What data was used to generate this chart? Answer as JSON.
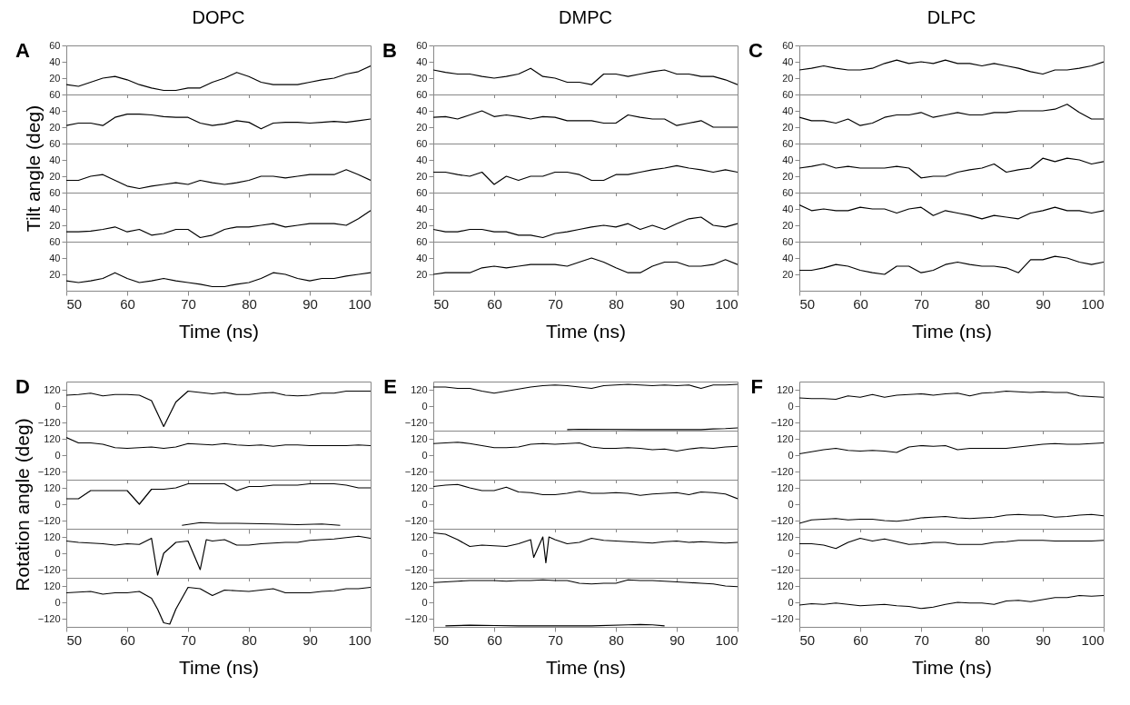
{
  "chart_data": [
    {
      "type": "line",
      "title": "DOPC",
      "annotations": [
        "A"
      ],
      "tick_labels": "y",
      "x": [
        50,
        52,
        54,
        56,
        58,
        60,
        62,
        64,
        66,
        68,
        70,
        72,
        74,
        76,
        78,
        80,
        82,
        84,
        86,
        88,
        90,
        92,
        94,
        96,
        98,
        100
      ],
      "xlim": [
        50,
        100
      ],
      "xticks": [
        50,
        60,
        70,
        80,
        90,
        100
      ],
      "ylim": [
        0,
        60
      ],
      "yticks": [
        20,
        40,
        60
      ],
      "series": [
        {
          "color": "#000000",
          "values": [
            12,
            10,
            15,
            20,
            22,
            18,
            12,
            8,
            5,
            5,
            8,
            8,
            15,
            20,
            27,
            22,
            15,
            12,
            12,
            12,
            15,
            18,
            20,
            25,
            28,
            35
          ]
        }
      ]
    },
    {
      "type": "line",
      "tick_labels": "y",
      "x": [
        50,
        52,
        54,
        56,
        58,
        60,
        62,
        64,
        66,
        68,
        70,
        72,
        74,
        76,
        78,
        80,
        82,
        84,
        86,
        88,
        90,
        92,
        94,
        96,
        98,
        100
      ],
      "xlim": [
        50,
        100
      ],
      "xticks": [
        50,
        60,
        70,
        80,
        90,
        100
      ],
      "ylim": [
        0,
        60
      ],
      "yticks": [
        20,
        40,
        60
      ],
      "series": [
        {
          "color": "#000000",
          "values": [
            22,
            25,
            25,
            22,
            32,
            36,
            36,
            35,
            33,
            32,
            32,
            25,
            22,
            24,
            28,
            26,
            18,
            25,
            26,
            26,
            25,
            26,
            27,
            26,
            28,
            30
          ]
        }
      ]
    },
    {
      "type": "line",
      "ylabel": "Tilt angle (deg)",
      "tick_labels": "y",
      "x": [
        50,
        52,
        54,
        56,
        58,
        60,
        62,
        64,
        66,
        68,
        70,
        72,
        74,
        76,
        78,
        80,
        82,
        84,
        86,
        88,
        90,
        92,
        94,
        96,
        98,
        100
      ],
      "xlim": [
        50,
        100
      ],
      "xticks": [
        50,
        60,
        70,
        80,
        90,
        100
      ],
      "ylim": [
        0,
        60
      ],
      "yticks": [
        20,
        40,
        60
      ],
      "series": [
        {
          "color": "#000000",
          "values": [
            15,
            15,
            20,
            22,
            15,
            8,
            5,
            8,
            10,
            12,
            10,
            15,
            12,
            10,
            12,
            15,
            20,
            20,
            18,
            20,
            22,
            22,
            22,
            28,
            22,
            15
          ]
        }
      ]
    },
    {
      "type": "line",
      "tick_labels": "y",
      "x": [
        50,
        52,
        54,
        56,
        58,
        60,
        62,
        64,
        66,
        68,
        70,
        72,
        74,
        76,
        78,
        80,
        82,
        84,
        86,
        88,
        90,
        92,
        94,
        96,
        98,
        100
      ],
      "xlim": [
        50,
        100
      ],
      "xticks": [
        50,
        60,
        70,
        80,
        90,
        100
      ],
      "ylim": [
        0,
        60
      ],
      "yticks": [
        20,
        40,
        60
      ],
      "series": [
        {
          "color": "#000000",
          "values": [
            12,
            12,
            13,
            15,
            18,
            12,
            15,
            8,
            10,
            15,
            15,
            5,
            8,
            15,
            18,
            18,
            20,
            22,
            18,
            20,
            22,
            22,
            22,
            20,
            28,
            38
          ]
        }
      ]
    },
    {
      "type": "line",
      "xlabel": "Time (ns)",
      "x": [
        50,
        52,
        54,
        56,
        58,
        60,
        62,
        64,
        66,
        68,
        70,
        72,
        74,
        76,
        78,
        80,
        82,
        84,
        86,
        88,
        90,
        92,
        94,
        96,
        98,
        100
      ],
      "xlim": [
        50,
        100
      ],
      "xticks": [
        50,
        60,
        70,
        80,
        90,
        100
      ],
      "ylim": [
        0,
        60
      ],
      "yticks": [
        20,
        40,
        60
      ],
      "series": [
        {
          "color": "#000000",
          "values": [
            12,
            10,
            12,
            15,
            22,
            15,
            10,
            12,
            15,
            12,
            10,
            8,
            5,
            5,
            8,
            10,
            15,
            22,
            20,
            15,
            12,
            15,
            15,
            18,
            20,
            22
          ]
        }
      ]
    },
    {
      "type": "line",
      "title": "DMPC",
      "annotations": [
        "B"
      ],
      "tick_labels": "y",
      "x": [
        50,
        52,
        54,
        56,
        58,
        60,
        62,
        64,
        66,
        68,
        70,
        72,
        74,
        76,
        78,
        80,
        82,
        84,
        86,
        88,
        90,
        92,
        94,
        96,
        98,
        100
      ],
      "xlim": [
        50,
        100
      ],
      "xticks": [
        50,
        60,
        70,
        80,
        90,
        100
      ],
      "ylim": [
        0,
        60
      ],
      "yticks": [
        20,
        40,
        60
      ],
      "series": [
        {
          "color": "#000000",
          "values": [
            30,
            27,
            25,
            25,
            22,
            20,
            22,
            25,
            32,
            22,
            20,
            15,
            15,
            12,
            25,
            25,
            22,
            25,
            28,
            30,
            25,
            25,
            22,
            22,
            18,
            12
          ]
        }
      ]
    },
    {
      "type": "line",
      "tick_labels": "y",
      "x": [
        50,
        52,
        54,
        56,
        58,
        60,
        62,
        64,
        66,
        68,
        70,
        72,
        74,
        76,
        78,
        80,
        82,
        84,
        86,
        88,
        90,
        92,
        94,
        96,
        98,
        100
      ],
      "xlim": [
        50,
        100
      ],
      "xticks": [
        50,
        60,
        70,
        80,
        90,
        100
      ],
      "ylim": [
        0,
        60
      ],
      "yticks": [
        20,
        40,
        60
      ],
      "series": [
        {
          "color": "#000000",
          "values": [
            32,
            33,
            30,
            35,
            40,
            33,
            35,
            33,
            30,
            33,
            32,
            28,
            28,
            28,
            25,
            25,
            35,
            32,
            30,
            30,
            22,
            25,
            28,
            20,
            20,
            20
          ]
        }
      ]
    },
    {
      "type": "line",
      "tick_labels": "y",
      "x": [
        50,
        52,
        54,
        56,
        58,
        60,
        62,
        64,
        66,
        68,
        70,
        72,
        74,
        76,
        78,
        80,
        82,
        84,
        86,
        88,
        90,
        92,
        94,
        96,
        98,
        100
      ],
      "xlim": [
        50,
        100
      ],
      "xticks": [
        50,
        60,
        70,
        80,
        90,
        100
      ],
      "ylim": [
        0,
        60
      ],
      "yticks": [
        20,
        40,
        60
      ],
      "series": [
        {
          "color": "#000000",
          "values": [
            25,
            25,
            22,
            20,
            25,
            10,
            20,
            15,
            20,
            20,
            25,
            25,
            22,
            15,
            15,
            22,
            22,
            25,
            28,
            30,
            33,
            30,
            28,
            25,
            28,
            25
          ]
        }
      ]
    },
    {
      "type": "line",
      "tick_labels": "y",
      "x": [
        50,
        52,
        54,
        56,
        58,
        60,
        62,
        64,
        66,
        68,
        70,
        72,
        74,
        76,
        78,
        80,
        82,
        84,
        86,
        88,
        90,
        92,
        94,
        96,
        98,
        100
      ],
      "xlim": [
        50,
        100
      ],
      "xticks": [
        50,
        60,
        70,
        80,
        90,
        100
      ],
      "ylim": [
        0,
        60
      ],
      "yticks": [
        20,
        40,
        60
      ],
      "series": [
        {
          "color": "#000000",
          "values": [
            15,
            12,
            12,
            15,
            15,
            12,
            12,
            8,
            8,
            5,
            10,
            12,
            15,
            18,
            20,
            18,
            22,
            15,
            20,
            15,
            22,
            28,
            30,
            20,
            18,
            22
          ]
        }
      ]
    },
    {
      "type": "line",
      "xlabel": "Time (ns)",
      "x": [
        50,
        52,
        54,
        56,
        58,
        60,
        62,
        64,
        66,
        68,
        70,
        72,
        74,
        76,
        78,
        80,
        82,
        84,
        86,
        88,
        90,
        92,
        94,
        96,
        98,
        100
      ],
      "xlim": [
        50,
        100
      ],
      "xticks": [
        50,
        60,
        70,
        80,
        90,
        100
      ],
      "ylim": [
        0,
        60
      ],
      "yticks": [
        20,
        40,
        60
      ],
      "series": [
        {
          "color": "#000000",
          "values": [
            20,
            22,
            22,
            22,
            28,
            30,
            28,
            30,
            32,
            32,
            32,
            30,
            35,
            40,
            35,
            28,
            22,
            22,
            30,
            35,
            35,
            30,
            30,
            32,
            38,
            32
          ]
        }
      ]
    },
    {
      "type": "line",
      "title": "DLPC",
      "annotations": [
        "C"
      ],
      "tick_labels": "y",
      "x": [
        50,
        52,
        54,
        56,
        58,
        60,
        62,
        64,
        66,
        68,
        70,
        72,
        74,
        76,
        78,
        80,
        82,
        84,
        86,
        88,
        90,
        92,
        94,
        96,
        98,
        100
      ],
      "xlim": [
        50,
        100
      ],
      "xticks": [
        50,
        60,
        70,
        80,
        90,
        100
      ],
      "ylim": [
        0,
        60
      ],
      "yticks": [
        20,
        40,
        60
      ],
      "series": [
        {
          "color": "#000000",
          "values": [
            30,
            32,
            35,
            32,
            30,
            30,
            32,
            38,
            42,
            38,
            40,
            38,
            42,
            38,
            38,
            35,
            38,
            35,
            32,
            28,
            25,
            30,
            30,
            32,
            35,
            40
          ]
        }
      ]
    },
    {
      "type": "line",
      "tick_labels": "y",
      "x": [
        50,
        52,
        54,
        56,
        58,
        60,
        62,
        64,
        66,
        68,
        70,
        72,
        74,
        76,
        78,
        80,
        82,
        84,
        86,
        88,
        90,
        92,
        94,
        96,
        98,
        100
      ],
      "xlim": [
        50,
        100
      ],
      "xticks": [
        50,
        60,
        70,
        80,
        90,
        100
      ],
      "ylim": [
        0,
        60
      ],
      "yticks": [
        20,
        40,
        60
      ],
      "series": [
        {
          "color": "#000000",
          "values": [
            32,
            28,
            28,
            25,
            30,
            22,
            25,
            32,
            35,
            35,
            38,
            32,
            35,
            38,
            35,
            35,
            38,
            38,
            40,
            40,
            40,
            42,
            48,
            38,
            30,
            30
          ]
        }
      ]
    },
    {
      "type": "line",
      "tick_labels": "y",
      "x": [
        50,
        52,
        54,
        56,
        58,
        60,
        62,
        64,
        66,
        68,
        70,
        72,
        74,
        76,
        78,
        80,
        82,
        84,
        86,
        88,
        90,
        92,
        94,
        96,
        98,
        100
      ],
      "xlim": [
        50,
        100
      ],
      "xticks": [
        50,
        60,
        70,
        80,
        90,
        100
      ],
      "ylim": [
        0,
        60
      ],
      "yticks": [
        20,
        40,
        60
      ],
      "series": [
        {
          "color": "#000000",
          "values": [
            30,
            32,
            35,
            30,
            32,
            30,
            30,
            30,
            32,
            30,
            18,
            20,
            20,
            25,
            28,
            30,
            35,
            25,
            28,
            30,
            42,
            38,
            42,
            40,
            35,
            38
          ]
        }
      ]
    },
    {
      "type": "line",
      "tick_labels": "y",
      "x": [
        50,
        52,
        54,
        56,
        58,
        60,
        62,
        64,
        66,
        68,
        70,
        72,
        74,
        76,
        78,
        80,
        82,
        84,
        86,
        88,
        90,
        92,
        94,
        96,
        98,
        100
      ],
      "xlim": [
        50,
        100
      ],
      "xticks": [
        50,
        60,
        70,
        80,
        90,
        100
      ],
      "ylim": [
        0,
        60
      ],
      "yticks": [
        20,
        40,
        60
      ],
      "series": [
        {
          "color": "#000000",
          "values": [
            45,
            38,
            40,
            38,
            38,
            42,
            40,
            40,
            35,
            40,
            42,
            32,
            38,
            35,
            32,
            28,
            32,
            30,
            28,
            35,
            38,
            42,
            38,
            38,
            35,
            38
          ]
        }
      ]
    },
    {
      "type": "line",
      "xlabel": "Time (ns)",
      "x": [
        50,
        52,
        54,
        56,
        58,
        60,
        62,
        64,
        66,
        68,
        70,
        72,
        74,
        76,
        78,
        80,
        82,
        84,
        86,
        88,
        90,
        92,
        94,
        96,
        98,
        100
      ],
      "xlim": [
        50,
        100
      ],
      "xticks": [
        50,
        60,
        70,
        80,
        90,
        100
      ],
      "ylim": [
        0,
        60
      ],
      "yticks": [
        20,
        40,
        60
      ],
      "series": [
        {
          "color": "#000000",
          "values": [
            25,
            25,
            28,
            32,
            30,
            25,
            22,
            20,
            30,
            30,
            22,
            25,
            32,
            35,
            32,
            30,
            30,
            28,
            22,
            38,
            38,
            42,
            40,
            35,
            32,
            35
          ]
        }
      ]
    },
    {
      "type": "line",
      "annotations": [
        "D"
      ],
      "tick_labels": "y",
      "x": [
        50,
        52,
        54,
        56,
        58,
        60,
        62,
        64,
        66,
        68,
        70,
        72,
        74,
        76,
        78,
        80,
        82,
        84,
        86,
        88,
        90,
        92,
        94,
        96,
        98,
        100
      ],
      "xlim": [
        50,
        100
      ],
      "xticks": [
        50,
        60,
        70,
        80,
        90,
        100
      ],
      "ylim": [
        -180,
        180
      ],
      "yticks": [
        -120,
        0,
        120
      ],
      "series": [
        {
          "color": "#000000",
          "values": [
            80,
            85,
            95,
            75,
            85,
            85,
            80,
            40,
            -150,
            30,
            110,
            100,
            90,
            100,
            85,
            85,
            95,
            100,
            80,
            75,
            80,
            95,
            95,
            110,
            110,
            110
          ]
        }
      ]
    },
    {
      "type": "line",
      "tick_labels": "y",
      "x": [
        50,
        52,
        54,
        56,
        58,
        60,
        62,
        64,
        66,
        68,
        70,
        72,
        74,
        76,
        78,
        80,
        82,
        84,
        86,
        88,
        90,
        92,
        94,
        96,
        98,
        100
      ],
      "xlim": [
        50,
        100
      ],
      "xticks": [
        50,
        60,
        70,
        80,
        90,
        100
      ],
      "ylim": [
        -180,
        180
      ],
      "yticks": [
        -120,
        0,
        120
      ],
      "series": [
        {
          "color": "#000000",
          "values": [
            130,
            90,
            90,
            80,
            55,
            50,
            55,
            60,
            50,
            60,
            85,
            80,
            75,
            85,
            75,
            70,
            75,
            65,
            75,
            75,
            70,
            70,
            70,
            70,
            75,
            70
          ]
        }
      ]
    },
    {
      "type": "line",
      "ylabel": "Rotation angle (deg)",
      "tick_labels": "y",
      "x": [
        50,
        52,
        54,
        56,
        58,
        60,
        62,
        64,
        66,
        68,
        70,
        72,
        74,
        76,
        78,
        80,
        82,
        84,
        86,
        88,
        90,
        92,
        94,
        96,
        98,
        100
      ],
      "xlim": [
        50,
        100
      ],
      "xticks": [
        50,
        60,
        70,
        80,
        90,
        100
      ],
      "ylim": [
        -180,
        180
      ],
      "yticks": [
        -120,
        0,
        120
      ],
      "series": [
        {
          "color": "#000000",
          "values": [
            40,
            40,
            100,
            100,
            100,
            100,
            0,
            110,
            110,
            120,
            150,
            150,
            150,
            150,
            100,
            130,
            130,
            140,
            140,
            140,
            150,
            150,
            150,
            140,
            120,
            120
          ]
        },
        {
          "color": "#000000",
          "x": [
            69,
            72,
            75,
            78,
            84,
            88,
            92,
            95
          ],
          "values": [
            -155,
            -135,
            -140,
            -140,
            -145,
            -150,
            -145,
            -155
          ]
        }
      ]
    },
    {
      "type": "line",
      "tick_labels": "y",
      "x": [
        50,
        52,
        54,
        56,
        58,
        60,
        62,
        64,
        65,
        66,
        68,
        70,
        72,
        73,
        74,
        76,
        78,
        80,
        82,
        84,
        86,
        88,
        90,
        92,
        94,
        96,
        98,
        100
      ],
      "xlim": [
        50,
        100
      ],
      "xticks": [
        50,
        60,
        70,
        80,
        90,
        100
      ],
      "ylim": [
        -180,
        180
      ],
      "yticks": [
        -120,
        0,
        120
      ],
      "series": [
        {
          "color": "#000000",
          "values": [
            90,
            80,
            75,
            70,
            60,
            70,
            65,
            110,
            -160,
            0,
            80,
            90,
            -120,
            100,
            90,
            100,
            60,
            60,
            70,
            75,
            80,
            80,
            95,
            100,
            105,
            115,
            125,
            110
          ]
        }
      ]
    },
    {
      "type": "line",
      "xlabel": "Time (ns)",
      "x": [
        50,
        52,
        54,
        56,
        58,
        60,
        62,
        64,
        65,
        66,
        67,
        68,
        70,
        72,
        74,
        76,
        78,
        80,
        82,
        84,
        86,
        88,
        90,
        92,
        94,
        96,
        98,
        100
      ],
      "xlim": [
        50,
        100
      ],
      "xticks": [
        50,
        60,
        70,
        80,
        90,
        100
      ],
      "ylim": [
        -180,
        180
      ],
      "yticks": [
        -120,
        0,
        120
      ],
      "series": [
        {
          "color": "#000000",
          "values": [
            70,
            75,
            80,
            60,
            70,
            70,
            80,
            30,
            -50,
            -150,
            -160,
            -50,
            110,
            100,
            50,
            90,
            85,
            80,
            90,
            100,
            70,
            70,
            70,
            80,
            85,
            100,
            100,
            110
          ]
        }
      ]
    },
    {
      "type": "line",
      "annotations": [
        "E"
      ],
      "tick_labels": "y",
      "x": [
        50,
        52,
        54,
        56,
        58,
        60,
        62,
        64,
        66,
        68,
        70,
        72,
        74,
        76,
        78,
        80,
        82,
        84,
        86,
        88,
        90,
        92,
        94,
        96,
        98,
        100
      ],
      "xlim": [
        50,
        100
      ],
      "xticks": [
        50,
        60,
        70,
        80,
        90,
        100
      ],
      "ylim": [
        -180,
        180
      ],
      "yticks": [
        -120,
        0,
        120
      ],
      "series": [
        {
          "color": "#000000",
          "values": [
            140,
            140,
            130,
            130,
            110,
            95,
            110,
            125,
            140,
            150,
            155,
            150,
            140,
            130,
            150,
            155,
            160,
            155,
            150,
            155,
            150,
            155,
            130,
            155,
            155,
            160
          ]
        },
        {
          "color": "#000000",
          "x": [
            72,
            74,
            84,
            94,
            96,
            98,
            100
          ],
          "values": [
            -172,
            -170,
            -172,
            -172,
            -168,
            -165,
            -160
          ]
        }
      ]
    },
    {
      "type": "line",
      "tick_labels": "y",
      "x": [
        50,
        52,
        54,
        56,
        58,
        60,
        62,
        64,
        66,
        68,
        70,
        72,
        74,
        76,
        78,
        80,
        82,
        84,
        86,
        88,
        90,
        92,
        94,
        96,
        98,
        100
      ],
      "xlim": [
        50,
        100
      ],
      "xticks": [
        50,
        60,
        70,
        80,
        90,
        100
      ],
      "ylim": [
        -180,
        180
      ],
      "yticks": [
        -120,
        0,
        120
      ],
      "series": [
        {
          "color": "#000000",
          "values": [
            85,
            90,
            95,
            85,
            70,
            55,
            55,
            60,
            80,
            85,
            80,
            85,
            90,
            60,
            50,
            50,
            55,
            50,
            40,
            45,
            30,
            45,
            55,
            50,
            60,
            65
          ]
        }
      ]
    },
    {
      "type": "line",
      "tick_labels": "y",
      "x": [
        50,
        52,
        54,
        56,
        58,
        60,
        62,
        64,
        66,
        68,
        70,
        72,
        74,
        76,
        78,
        80,
        82,
        84,
        86,
        88,
        90,
        92,
        94,
        96,
        98,
        100
      ],
      "xlim": [
        50,
        100
      ],
      "xticks": [
        50,
        60,
        70,
        80,
        90,
        100
      ],
      "ylim": [
        -180,
        180
      ],
      "yticks": [
        -120,
        0,
        120
      ],
      "series": [
        {
          "color": "#000000",
          "values": [
            130,
            140,
            145,
            120,
            100,
            100,
            125,
            90,
            85,
            70,
            70,
            80,
            95,
            80,
            80,
            85,
            80,
            65,
            75,
            80,
            85,
            70,
            90,
            85,
            75,
            40
          ]
        }
      ]
    },
    {
      "type": "line",
      "tick_labels": "y",
      "x": [
        50,
        52,
        54,
        56,
        58,
        60,
        62,
        64,
        66,
        66.5,
        68,
        68.5,
        69,
        70,
        72,
        74,
        76,
        78,
        80,
        82,
        84,
        86,
        88,
        90,
        92,
        94,
        96,
        98,
        100
      ],
      "xlim": [
        50,
        100
      ],
      "xticks": [
        50,
        60,
        70,
        80,
        90,
        100
      ],
      "ylim": [
        -180,
        180
      ],
      "yticks": [
        -120,
        0,
        120
      ],
      "series": [
        {
          "color": "#000000",
          "values": [
            150,
            140,
            100,
            50,
            60,
            55,
            50,
            70,
            100,
            -30,
            120,
            -70,
            120,
            100,
            70,
            80,
            110,
            95,
            90,
            85,
            80,
            75,
            85,
            90,
            80,
            85,
            80,
            75,
            80
          ]
        }
      ]
    },
    {
      "type": "line",
      "xlabel": "Time (ns)",
      "x": [
        50,
        52,
        54,
        56,
        58,
        60,
        62,
        64,
        66,
        68,
        70,
        72,
        74,
        76,
        78,
        80,
        82,
        84,
        86,
        88,
        90,
        92,
        94,
        96,
        98,
        100
      ],
      "xlim": [
        50,
        100
      ],
      "xticks": [
        50,
        60,
        70,
        80,
        90,
        100
      ],
      "ylim": [
        -180,
        180
      ],
      "yticks": [
        -120,
        0,
        120
      ],
      "series": [
        {
          "color": "#000000",
          "values": [
            145,
            150,
            155,
            160,
            160,
            160,
            155,
            160,
            160,
            165,
            160,
            160,
            140,
            135,
            140,
            140,
            165,
            160,
            160,
            155,
            150,
            145,
            140,
            135,
            120,
            115
          ]
        },
        {
          "color": "#000000",
          "x": [
            52,
            56,
            60,
            64,
            70,
            76,
            82,
            84,
            86,
            88
          ],
          "values": [
            -172,
            -168,
            -170,
            -172,
            -172,
            -172,
            -165,
            -162,
            -165,
            -172
          ]
        }
      ]
    },
    {
      "type": "line",
      "annotations": [
        "F"
      ],
      "tick_labels": "y",
      "x": [
        50,
        52,
        54,
        56,
        58,
        60,
        62,
        64,
        66,
        68,
        70,
        72,
        74,
        76,
        78,
        80,
        82,
        84,
        86,
        88,
        90,
        92,
        94,
        96,
        98,
        100
      ],
      "xlim": [
        50,
        100
      ],
      "xticks": [
        50,
        60,
        70,
        80,
        90,
        100
      ],
      "ylim": [
        -180,
        180
      ],
      "yticks": [
        -120,
        0,
        120
      ],
      "series": [
        {
          "color": "#000000",
          "values": [
            60,
            55,
            55,
            50,
            75,
            65,
            85,
            65,
            80,
            85,
            90,
            80,
            90,
            95,
            75,
            95,
            100,
            110,
            105,
            100,
            105,
            100,
            100,
            75,
            70,
            65
          ]
        }
      ]
    },
    {
      "type": "line",
      "tick_labels": "y",
      "x": [
        50,
        52,
        54,
        56,
        58,
        60,
        62,
        64,
        66,
        68,
        70,
        72,
        74,
        76,
        78,
        80,
        82,
        84,
        86,
        88,
        90,
        92,
        94,
        96,
        98,
        100
      ],
      "xlim": [
        50,
        100
      ],
      "xticks": [
        50,
        60,
        70,
        80,
        90,
        100
      ],
      "ylim": [
        -180,
        180
      ],
      "yticks": [
        -120,
        0,
        120
      ],
      "series": [
        {
          "color": "#000000",
          "values": [
            10,
            25,
            40,
            50,
            35,
            30,
            35,
            30,
            20,
            60,
            70,
            65,
            70,
            40,
            50,
            50,
            50,
            50,
            60,
            70,
            80,
            85,
            80,
            80,
            85,
            90
          ]
        }
      ]
    },
    {
      "type": "line",
      "tick_labels": "y",
      "x": [
        50,
        52,
        54,
        56,
        58,
        60,
        62,
        64,
        66,
        68,
        70,
        72,
        74,
        76,
        78,
        80,
        82,
        84,
        86,
        88,
        90,
        92,
        94,
        96,
        98,
        100
      ],
      "xlim": [
        50,
        100
      ],
      "xticks": [
        50,
        60,
        70,
        80,
        90,
        100
      ],
      "ylim": [
        -180,
        180
      ],
      "yticks": [
        -120,
        0,
        120
      ],
      "series": [
        {
          "color": "#000000",
          "values": [
            -140,
            -115,
            -110,
            -105,
            -115,
            -110,
            -110,
            -120,
            -125,
            -115,
            -100,
            -95,
            -90,
            -100,
            -105,
            -100,
            -95,
            -80,
            -75,
            -80,
            -80,
            -95,
            -90,
            -80,
            -75,
            -85
          ]
        }
      ]
    },
    {
      "type": "line",
      "tick_labels": "y",
      "x": [
        50,
        52,
        54,
        56,
        58,
        60,
        62,
        64,
        66,
        68,
        70,
        72,
        74,
        76,
        78,
        80,
        82,
        84,
        86,
        88,
        90,
        92,
        94,
        96,
        98,
        100
      ],
      "xlim": [
        50,
        100
      ],
      "xticks": [
        50,
        60,
        70,
        80,
        90,
        100
      ],
      "ylim": [
        -180,
        180
      ],
      "yticks": [
        -120,
        0,
        120
      ],
      "series": [
        {
          "color": "#000000",
          "values": [
            70,
            70,
            60,
            35,
            80,
            110,
            90,
            105,
            85,
            65,
            70,
            80,
            80,
            65,
            65,
            65,
            80,
            85,
            95,
            95,
            95,
            90,
            90,
            90,
            90,
            95
          ]
        }
      ]
    },
    {
      "type": "line",
      "xlabel": "Time (ns)",
      "x": [
        50,
        52,
        54,
        56,
        58,
        60,
        62,
        64,
        66,
        68,
        70,
        72,
        74,
        76,
        78,
        80,
        82,
        84,
        86,
        88,
        90,
        92,
        94,
        96,
        98,
        100
      ],
      "xlim": [
        50,
        100
      ],
      "xticks": [
        50,
        60,
        70,
        80,
        90,
        100
      ],
      "ylim": [
        -180,
        180
      ],
      "yticks": [
        -120,
        0,
        120
      ],
      "series": [
        {
          "color": "#000000",
          "values": [
            -20,
            -10,
            -15,
            -5,
            -15,
            -25,
            -20,
            -15,
            -25,
            -30,
            -45,
            -35,
            -15,
            0,
            -5,
            -5,
            -15,
            10,
            15,
            5,
            20,
            35,
            35,
            50,
            45,
            50
          ]
        }
      ]
    }
  ]
}
